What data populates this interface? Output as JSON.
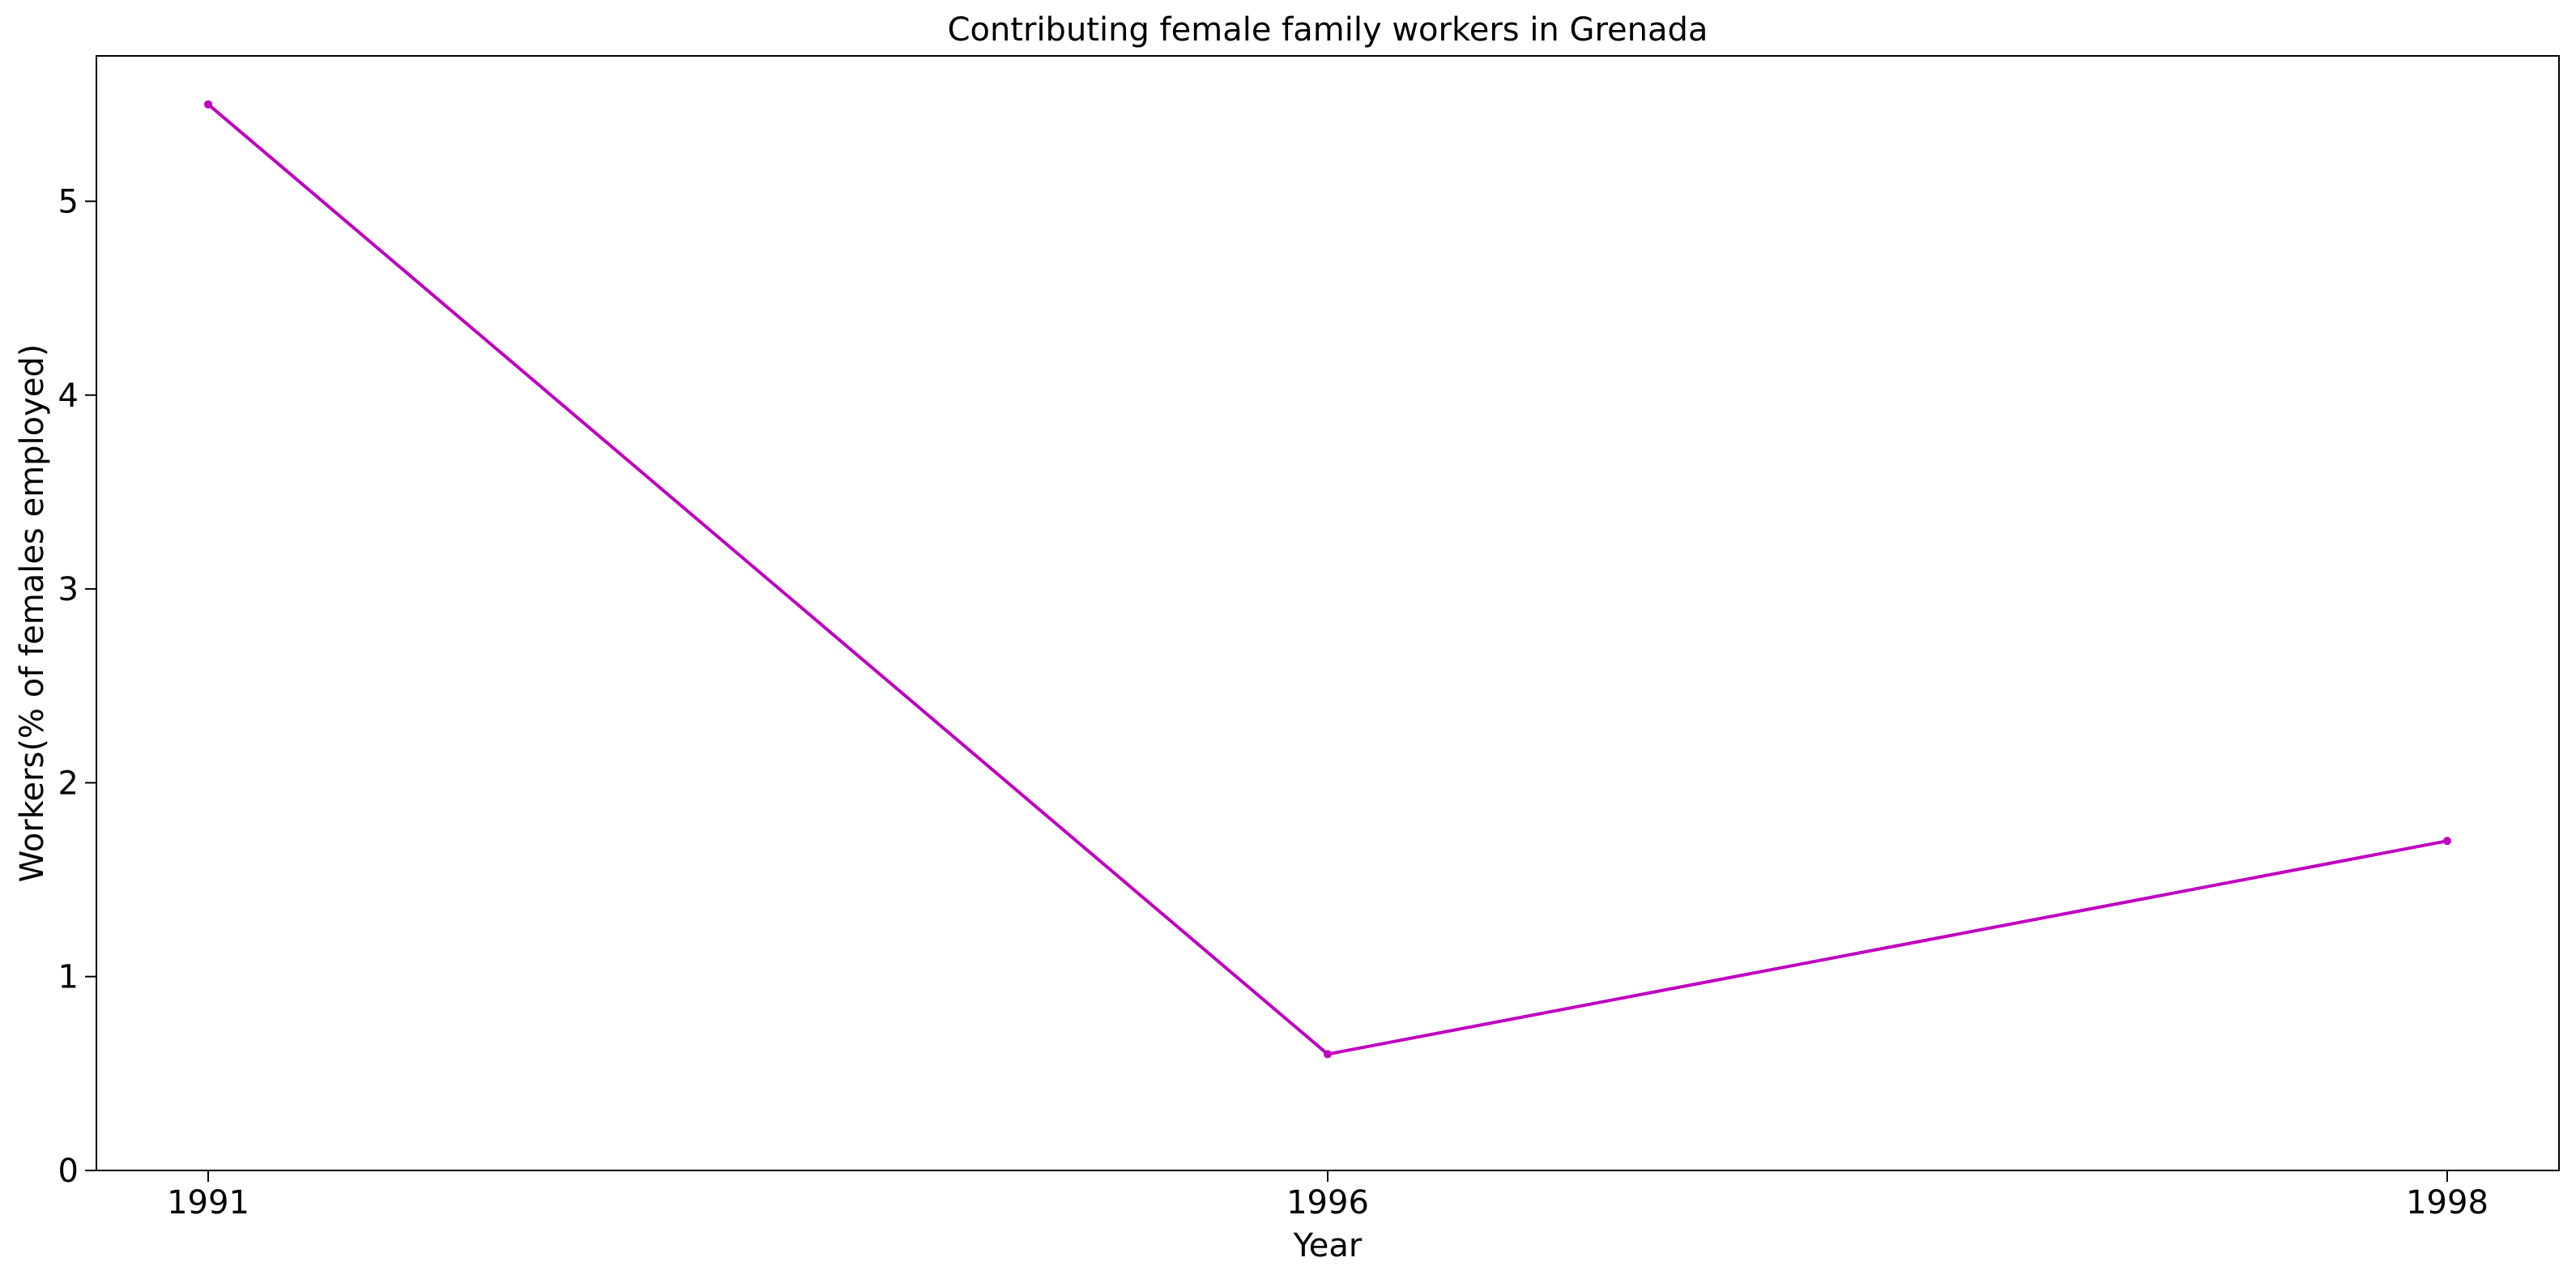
{
  "chart_data": {
    "type": "line",
    "title": "Contributing female family workers in Grenada",
    "xlabel": "Year",
    "ylabel": "Workers(% of females employed)",
    "categories": [
      "1991",
      "1996",
      "1998"
    ],
    "series": [
      {
        "values": [
          5.5,
          0.6,
          1.7
        ],
        "color": "#bf00bf",
        "marker": "circle"
      }
    ],
    "ylim": [
      0,
      5.75
    ],
    "yticks": [
      0,
      1,
      2,
      3,
      4,
      5
    ],
    "grid": false,
    "legend": "none"
  }
}
